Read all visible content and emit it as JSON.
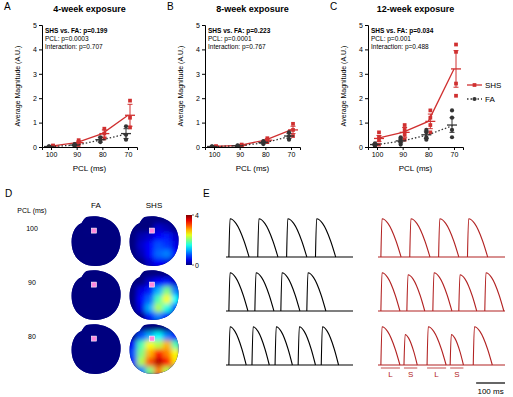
{
  "chart_data": [
    {
      "type": "line",
      "panel_label": "A",
      "title": "4-week exposure",
      "annotations": [
        "SHS vs. FA: p=0.199",
        "PCL: p=0.0003",
        "Interaction: p=0.707"
      ],
      "x_label": "PCL (ms)",
      "y_label": "Average Magnitude (A.U.)",
      "categories": [
        "100",
        "90",
        "80",
        "70"
      ],
      "ylim": [
        0,
        5
      ],
      "yticks": [
        0,
        1,
        2,
        3,
        4,
        5
      ],
      "series": [
        {
          "color": "#d03030",
          "marker": "square",
          "line_style": "solid",
          "values": [
            0.04,
            0.18,
            0.55,
            1.3
          ],
          "error": [
            0.02,
            0.06,
            0.15,
            0.45
          ],
          "points": [
            [
              0.02,
              0.05,
              0.06
            ],
            [
              0.08,
              0.2,
              0.28
            ],
            [
              0.35,
              0.55,
              0.75
            ],
            [
              0.8,
              1.2,
              1.9
            ]
          ]
        },
        {
          "color": "#333333",
          "marker": "circle",
          "line_style": "dotted",
          "values": [
            0.02,
            0.08,
            0.3,
            0.55
          ],
          "error": [
            0.01,
            0.03,
            0.1,
            0.2
          ],
          "points": [
            [
              0.01,
              0.02,
              0.03
            ],
            [
              0.05,
              0.08,
              0.12
            ],
            [
              0.2,
              0.3,
              0.4
            ],
            [
              0.3,
              0.5,
              0.85
            ]
          ]
        }
      ]
    },
    {
      "type": "line",
      "panel_label": "B",
      "title": "8-week exposure",
      "annotations": [
        "SHS vs. FA: p=0.223",
        "PCL: p=0.0001",
        "Interaction: p=0.767"
      ],
      "x_label": "PCL (ms)",
      "y_label": "Average Magnitude (A.U.)",
      "categories": [
        "100",
        "90",
        "80",
        "70"
      ],
      "ylim": [
        0,
        5
      ],
      "yticks": [
        0,
        1,
        2,
        3,
        4,
        5
      ],
      "series": [
        {
          "color": "#d03030",
          "marker": "square",
          "line_style": "solid",
          "values": [
            0.02,
            0.07,
            0.28,
            0.7
          ],
          "error": [
            0.01,
            0.03,
            0.06,
            0.15
          ],
          "points": [
            [
              0.01,
              0.02,
              0.03
            ],
            [
              0.04,
              0.07,
              0.1
            ],
            [
              0.2,
              0.28,
              0.36
            ],
            [
              0.45,
              0.7,
              0.95
            ]
          ]
        },
        {
          "color": "#333333",
          "marker": "circle",
          "line_style": "dotted",
          "values": [
            0.02,
            0.05,
            0.18,
            0.45
          ],
          "error": [
            0.01,
            0.02,
            0.05,
            0.1
          ],
          "points": [
            [
              0.01,
              0.02,
              0.03
            ],
            [
              0.03,
              0.05,
              0.07
            ],
            [
              0.12,
              0.18,
              0.24
            ],
            [
              0.3,
              0.45,
              0.6
            ]
          ]
        }
      ]
    },
    {
      "type": "line",
      "panel_label": "C",
      "title": "12-week exposure",
      "annotations": [
        "SHS vs. FA: p=0.034",
        "PCL: p=0.001",
        "Interaction: p=0.488"
      ],
      "x_label": "PCL (ms)",
      "y_label": "Average Magnitude (A.U.)",
      "categories": [
        "100",
        "90",
        "80",
        "70"
      ],
      "ylim": [
        0,
        5
      ],
      "yticks": [
        0,
        1,
        2,
        3,
        4,
        5
      ],
      "legend": "right",
      "series": [
        {
          "name": "SHS",
          "color": "#d03030",
          "marker": "square",
          "line_style": "solid",
          "values": [
            0.35,
            0.6,
            1.05,
            3.2
          ],
          "error": [
            0.12,
            0.2,
            0.3,
            0.75
          ],
          "points": [
            [
              0.1,
              0.3,
              0.4,
              0.6
            ],
            [
              0.3,
              0.5,
              0.7,
              0.9
            ],
            [
              0.6,
              0.9,
              1.2,
              1.5
            ],
            [
              2.1,
              2.6,
              3.9,
              4.2
            ]
          ]
        },
        {
          "name": "FA",
          "color": "#333333",
          "marker": "circle",
          "line_style": "dotted",
          "values": [
            0.1,
            0.25,
            0.5,
            0.9
          ],
          "error": [
            0.04,
            0.08,
            0.15,
            0.3
          ],
          "points": [
            [
              0.05,
              0.08,
              0.12,
              0.15
            ],
            [
              0.1,
              0.2,
              0.3,
              0.4
            ],
            [
              0.3,
              0.4,
              0.6,
              0.7
            ],
            [
              0.4,
              0.7,
              1.2,
              1.5
            ]
          ]
        }
      ]
    },
    {
      "type": "heatmap",
      "panel_label": "D",
      "columns": [
        "FA",
        "SHS"
      ],
      "row_title": "PCL (ms)",
      "rows": [
        "100",
        "90",
        "80"
      ],
      "cells": [
        [
          [
            [
              0,
              0,
              0,
              0,
              0,
              0
            ],
            [
              0,
              0,
              0,
              0,
              0,
              0
            ],
            [
              0,
              0,
              0,
              0,
              0,
              0
            ],
            [
              0,
              0,
              0,
              0,
              0,
              0
            ],
            [
              0,
              0,
              0,
              0,
              0,
              0
            ],
            [
              0,
              0,
              0,
              0,
              0,
              0
            ]
          ],
          [
            [
              0,
              0,
              0,
              0,
              0,
              0
            ],
            [
              0,
              0,
              0,
              0.3,
              0.2,
              0
            ],
            [
              0,
              0.2,
              0.3,
              0.5,
              0.6,
              0.3
            ],
            [
              0,
              0.3,
              0.5,
              0.8,
              0.7,
              0.4
            ],
            [
              0,
              0.2,
              0.5,
              0.9,
              1.0,
              0.5
            ],
            [
              0,
              0,
              0.3,
              0.5,
              0.4,
              0
            ]
          ]
        ],
        [
          [
            [
              0,
              0,
              0,
              0,
              0,
              0
            ],
            [
              0,
              0,
              0,
              0,
              0,
              0
            ],
            [
              0,
              0,
              0,
              0,
              0,
              0
            ],
            [
              0,
              0,
              0,
              0,
              0,
              0
            ],
            [
              0,
              0,
              0,
              0,
              0,
              0
            ],
            [
              0,
              0,
              0,
              0,
              0,
              0
            ]
          ],
          [
            [
              0,
              0,
              0,
              0,
              0,
              0
            ],
            [
              0,
              0,
              0.3,
              0.5,
              0.6,
              0.3
            ],
            [
              0,
              0.4,
              0.6,
              1.2,
              2.0,
              1.0
            ],
            [
              0,
              0.5,
              0.9,
              1.8,
              2.5,
              1.5
            ],
            [
              0,
              0.4,
              1.2,
              2.2,
              1.6,
              0.8
            ],
            [
              0,
              0,
              0.6,
              1.0,
              0.5,
              0
            ]
          ]
        ],
        [
          [
            [
              0,
              0,
              0,
              0,
              0,
              0
            ],
            [
              0,
              0,
              0,
              0,
              0,
              0
            ],
            [
              0,
              0,
              0,
              0,
              0,
              0
            ],
            [
              0,
              0,
              0,
              0,
              0,
              0
            ],
            [
              0,
              0,
              0,
              0,
              0,
              0
            ],
            [
              0,
              0,
              0,
              0,
              0,
              0
            ]
          ],
          [
            [
              0,
              0,
              0,
              0,
              0,
              0
            ],
            [
              0,
              0.8,
              1.2,
              1.5,
              1.0,
              0.5
            ],
            [
              0.5,
              1.8,
              2.5,
              2.2,
              2.8,
              1.8
            ],
            [
              0.8,
              2.0,
              2.8,
              3.5,
              3.0,
              2.5
            ],
            [
              0.6,
              2.2,
              3.2,
              3.8,
              3.5,
              2.6
            ],
            [
              0,
              1.0,
              2.0,
              3.0,
              2.2,
              0
            ]
          ]
        ]
      ],
      "colorbar_range": [
        0,
        4
      ],
      "colorbar_ticks": [
        0,
        4
      ]
    },
    {
      "type": "trace",
      "panel_label": "E",
      "xlim": [
        0,
        440
      ],
      "ylim": [
        0,
        1.1
      ],
      "tick_labels": false,
      "series": [
        {
          "color": "#000000",
          "traces": [
            {
              "x": [
                10,
                110,
                210,
                310
              ],
              "values": [
                1,
                1,
                1,
                1
              ],
              "durations": [
                70,
                70,
                70,
                70
              ]
            },
            {
              "x": [
                10,
                100,
                190,
                280
              ],
              "values": [
                1,
                1,
                1,
                1
              ],
              "durations": [
                66,
                66,
                66,
                66
              ]
            },
            {
              "x": [
                10,
                90,
                170,
                250,
                330
              ],
              "values": [
                1,
                1,
                1,
                1,
                1
              ],
              "durations": [
                60,
                60,
                60,
                60,
                60
              ]
            }
          ]
        },
        {
          "color": "#b22222",
          "traces": [
            {
              "x": [
                10,
                110,
                210,
                310
              ],
              "values": [
                1,
                1,
                1,
                1
              ],
              "durations": [
                70,
                70,
                70,
                70
              ]
            },
            {
              "x": [
                10,
                100,
                190,
                280,
                370
              ],
              "values": [
                1,
                0.95,
                1,
                0.95,
                1
              ],
              "durations": [
                66,
                62,
                66,
                62,
                66
              ]
            },
            {
              "x": [
                10,
                90,
                170,
                250,
                330
              ],
              "values": [
                1,
                0.8,
                1,
                0.8,
                1
              ],
              "durations": [
                66,
                46,
                66,
                46,
                66
              ],
              "beat_labels": [
                "L",
                "S",
                "L",
                "S"
              ]
            }
          ]
        }
      ],
      "scale_bar": {
        "value": 100,
        "label": "100 ms"
      }
    }
  ]
}
